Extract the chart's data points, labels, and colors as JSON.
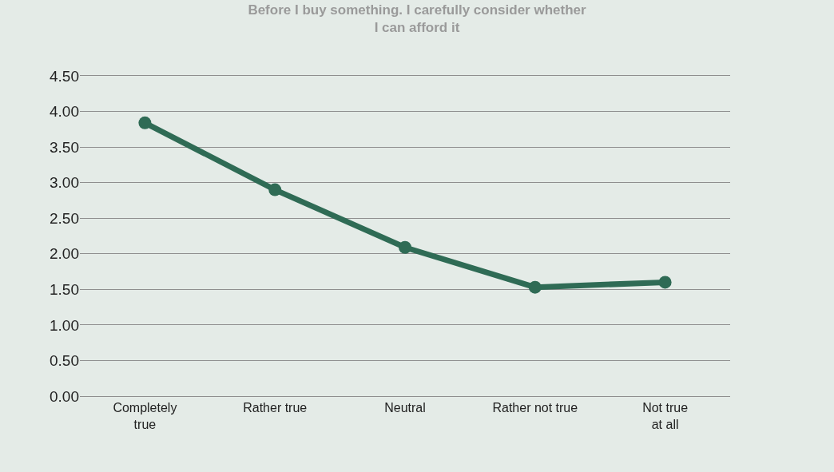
{
  "chart_data": {
    "type": "line",
    "title": "Before I buy something. I carefully consider whether\nI can afford it",
    "categories": [
      "Completely\ntrue",
      "Rather true",
      "Neutral",
      "Rather not true",
      "Not true\nat all"
    ],
    "series": [
      {
        "color": "#2f6b55",
        "values": [
          3.84,
          2.9,
          2.09,
          1.53,
          1.6
        ]
      }
    ],
    "ylim": [
      0,
      4.5
    ],
    "yticks": [
      {
        "value": 0,
        "label": "0.00"
      },
      {
        "value": 0.5,
        "label": "0.50"
      },
      {
        "value": 1,
        "label": "1.00"
      },
      {
        "value": 1.5,
        "label": "1.50"
      },
      {
        "value": 2,
        "label": "2.00"
      },
      {
        "value": 2.5,
        "label": "2.50"
      },
      {
        "value": 3,
        "label": "3.00"
      },
      {
        "value": 3.5,
        "label": "3.50"
      },
      {
        "value": 4,
        "label": "4.00"
      },
      {
        "value": 4.5,
        "label": "4.50"
      }
    ],
    "grid": "y",
    "marker": "circle",
    "line_style": "solid"
  }
}
